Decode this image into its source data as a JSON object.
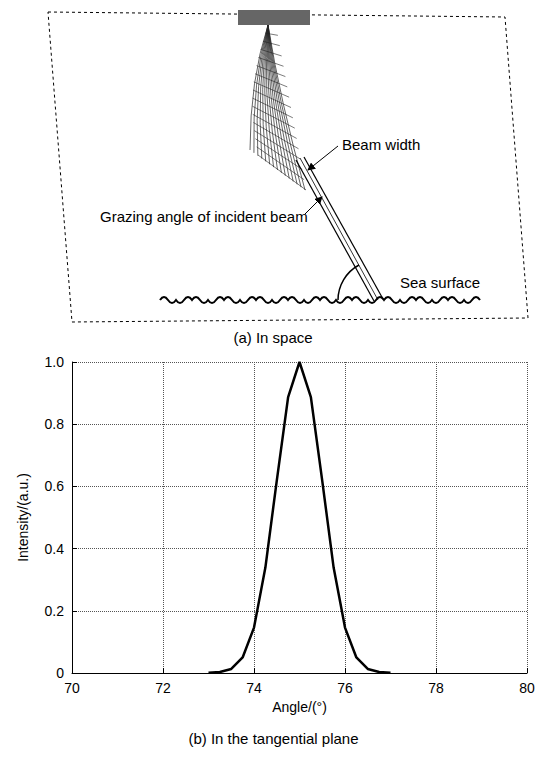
{
  "diagram": {
    "labels": {
      "beam_width": "Beam width",
      "grazing_angle": "Grazing angle of incident beam",
      "sea_surface": "Sea surface"
    },
    "caption": "(a) In space"
  },
  "chart_data": {
    "type": "line",
    "title": "(b) In the tangential plane",
    "x_label": "Angle/(°)",
    "y_label": "Intensity/(a.u.)",
    "x": [
      73,
      73.25,
      73.5,
      73.75,
      74,
      74.25,
      74.5,
      74.75,
      75,
      75.25,
      75.5,
      75.75,
      76,
      76.25,
      76.5,
      76.75,
      77
    ],
    "series": [
      {
        "name": "Intensity",
        "color": "#000000",
        "values": [
          0.0005,
          0.003,
          0.013,
          0.05,
          0.146,
          0.339,
          0.618,
          0.887,
          1.0,
          0.887,
          0.618,
          0.339,
          0.146,
          0.05,
          0.013,
          0.003,
          0.0005
        ]
      }
    ],
    "xlim": [
      70,
      80
    ],
    "xticks": [
      70,
      72,
      74,
      76,
      78,
      80
    ],
    "ylim": [
      0,
      1
    ],
    "yticks": [
      0,
      0.2,
      0.4,
      0.6,
      0.8,
      {
        "value": 1,
        "label": "1.0"
      }
    ],
    "grid": true
  }
}
